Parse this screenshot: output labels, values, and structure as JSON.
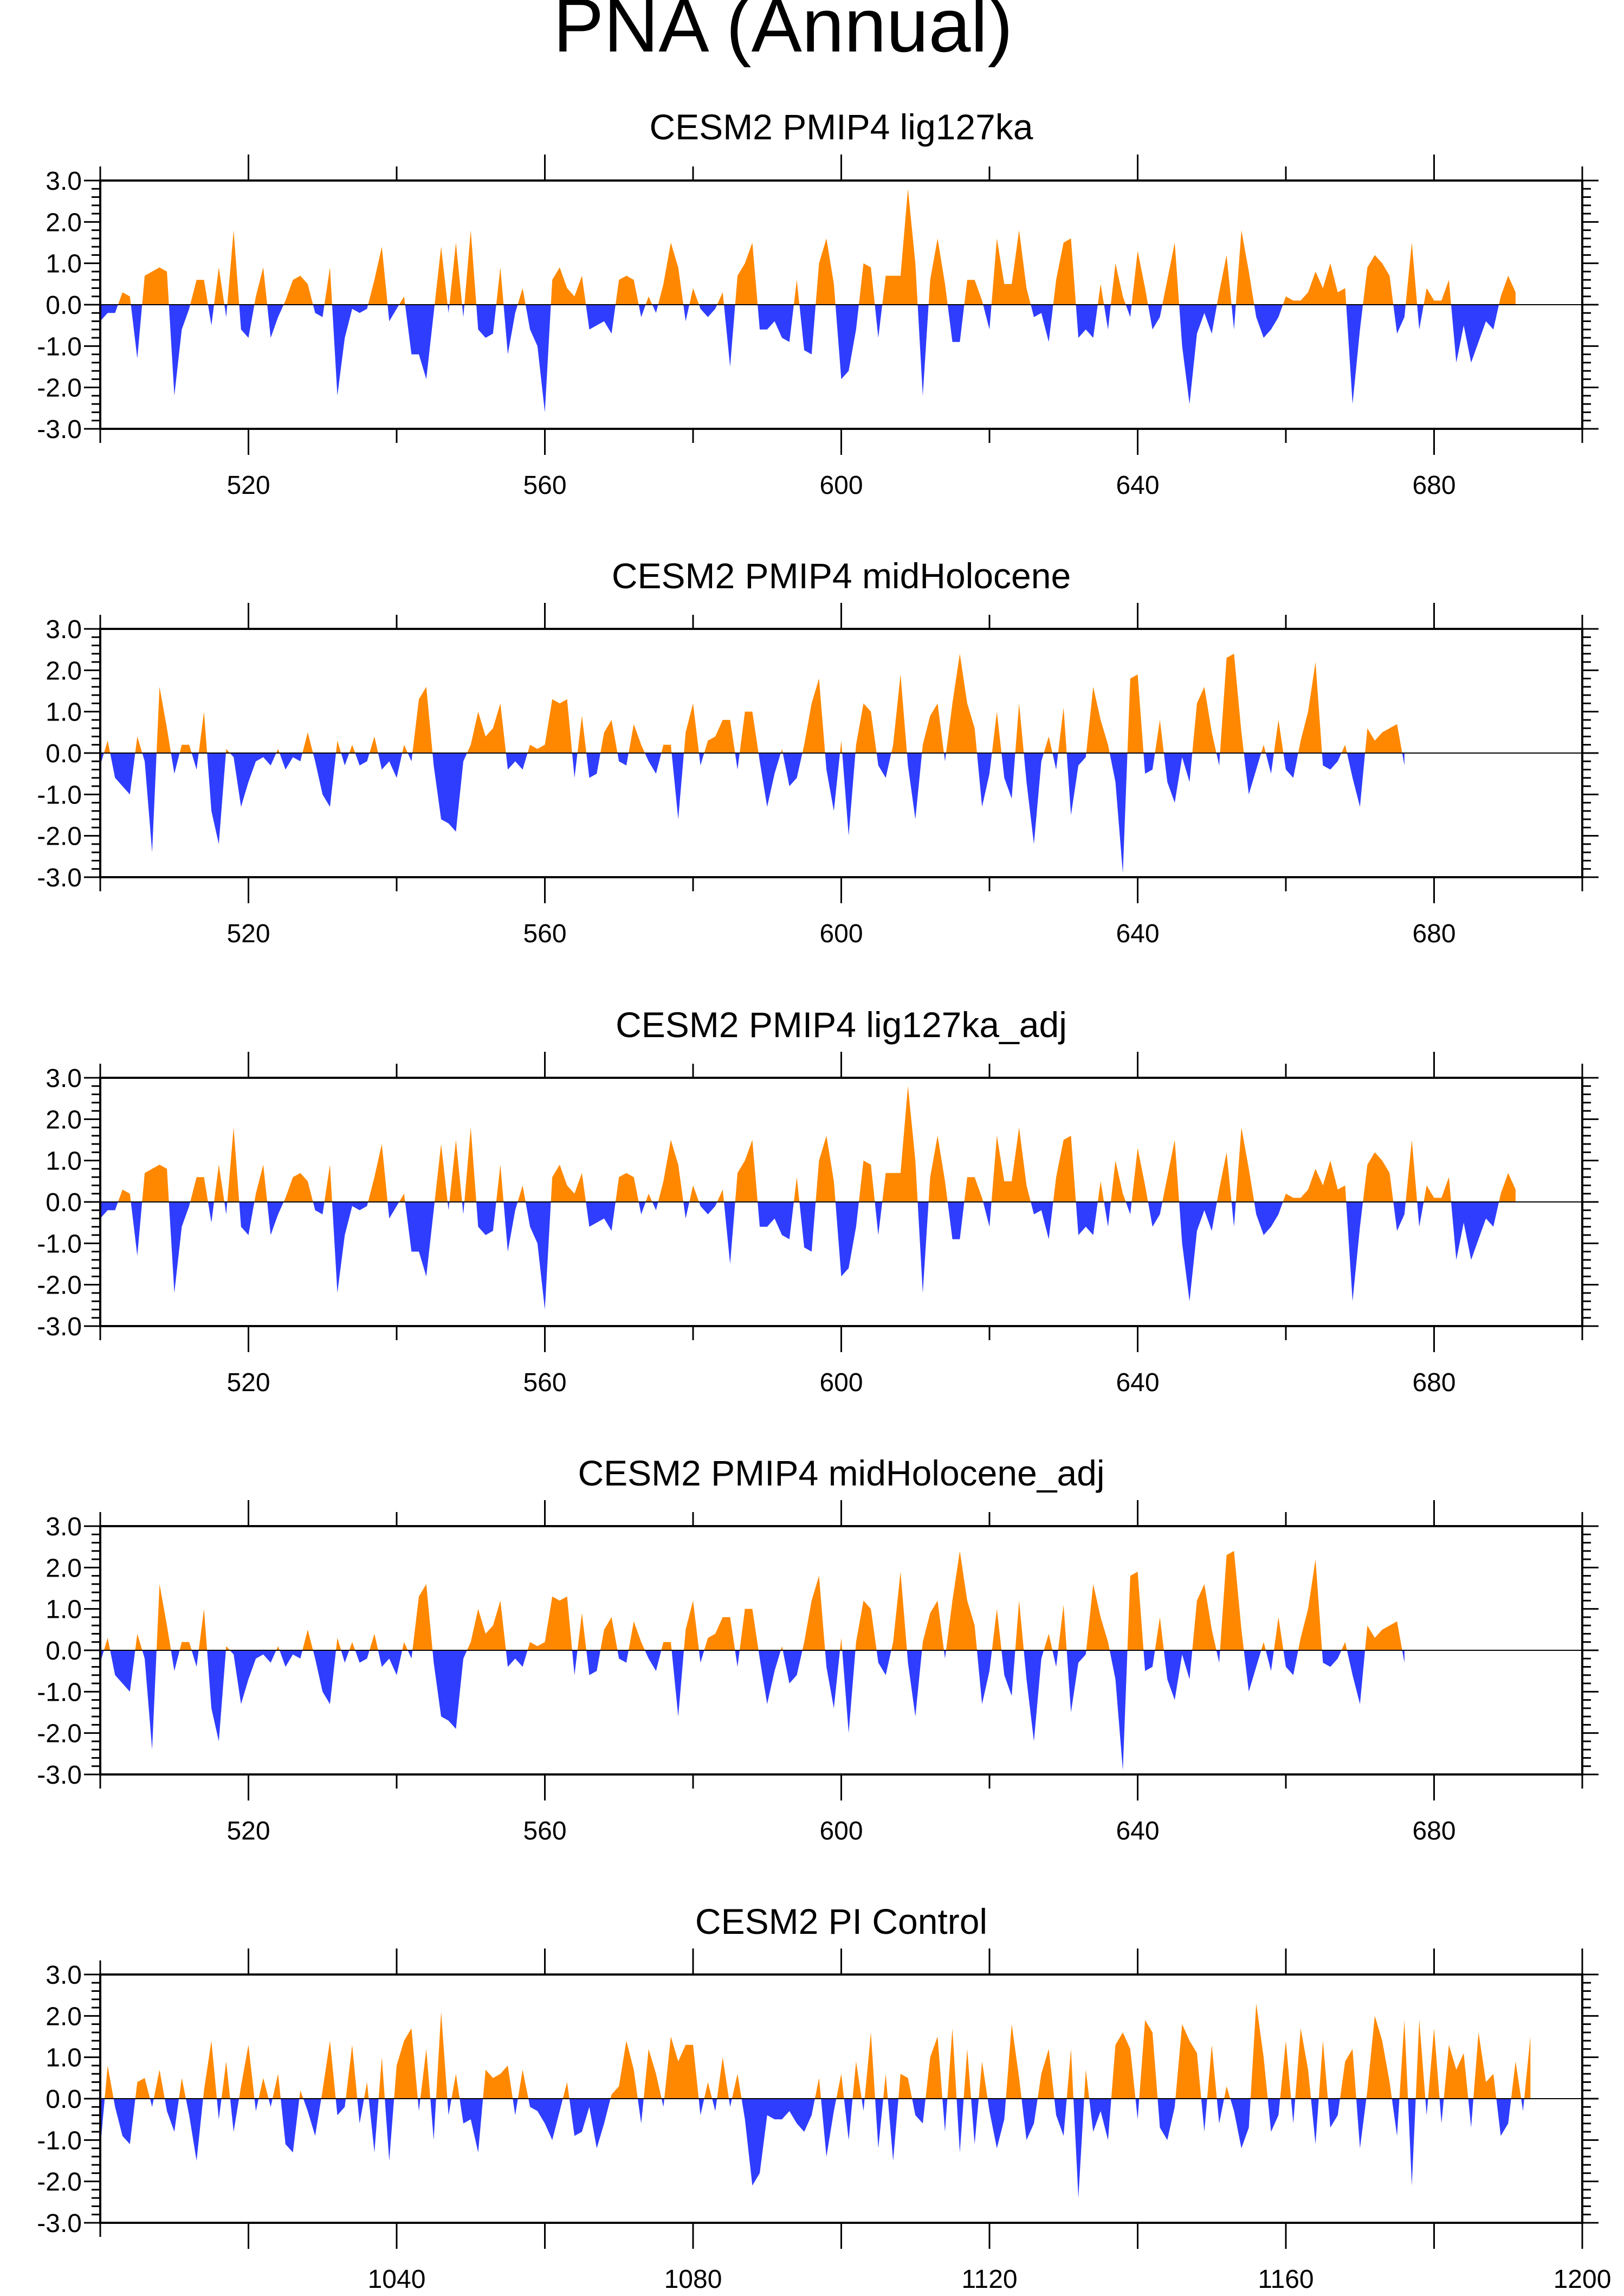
{
  "figure_title": "PNA (Annual)",
  "colors": {
    "positive": "#ff8800",
    "negative": "#2f3dff",
    "axis": "#000000",
    "zero_line": "#000000"
  },
  "chart_data": [
    {
      "type": "area",
      "title": "CESM2 PMIP4 lig127ka",
      "ylim": [
        -3.0,
        3.0
      ],
      "yticks": [
        "3.0",
        "2.0",
        "1.0",
        "0.0",
        "-1.0",
        "-2.0",
        "-3.0"
      ],
      "xlim": [
        500,
        700
      ],
      "xticks": [
        "520",
        "560",
        "600",
        "640",
        "680"
      ],
      "x_start": 500,
      "values": [
        -0.4,
        -0.2,
        -0.2,
        0.3,
        0.2,
        -1.3,
        0.7,
        0.8,
        0.9,
        0.8,
        -2.2,
        -0.6,
        -0.1,
        0.6,
        0.6,
        -0.5,
        0.9,
        -0.3,
        1.8,
        -0.6,
        -0.8,
        0.2,
        0.9,
        -0.8,
        -0.3,
        0.1,
        0.6,
        0.7,
        0.5,
        -0.2,
        -0.3,
        0.9,
        -2.2,
        -0.8,
        -0.1,
        -0.2,
        -0.1,
        0.6,
        1.4,
        -0.4,
        -0.1,
        0.2,
        -1.2,
        -1.2,
        -1.8,
        -0.2,
        1.4,
        -0.2,
        1.5,
        -0.3,
        1.8,
        -0.6,
        -0.8,
        -0.7,
        0.9,
        -1.2,
        -0.2,
        0.4,
        -0.6,
        -1.0,
        -2.6,
        0.6,
        0.9,
        0.4,
        0.2,
        0.7,
        -0.6,
        -0.5,
        -0.4,
        -0.7,
        0.6,
        0.7,
        0.6,
        -0.3,
        0.2,
        -0.2,
        0.5,
        1.5,
        0.9,
        -0.4,
        0.4,
        -0.1,
        -0.3,
        -0.1,
        0.3,
        -1.5,
        0.7,
        1.0,
        1.5,
        -0.6,
        -0.6,
        -0.4,
        -0.8,
        -0.9,
        0.6,
        -1.1,
        -1.2,
        1.0,
        1.6,
        0.5,
        -1.8,
        -1.6,
        -0.6,
        1.0,
        0.9,
        -0.8,
        0.7,
        0.7,
        0.7,
        2.8,
        1.0,
        -2.2,
        0.6,
        1.6,
        0.5,
        -0.9,
        -0.9,
        0.6,
        0.6,
        0.1,
        -0.6,
        1.6,
        0.5,
        0.5,
        1.8,
        0.4,
        -0.3,
        -0.2,
        -0.9,
        0.6,
        1.5,
        1.6,
        -0.8,
        -0.6,
        -0.8,
        0.5,
        -0.6,
        1.0,
        0.2,
        -0.3,
        1.3,
        0.4,
        -0.6,
        -0.3,
        0.6,
        1.5,
        -1.0,
        -2.4,
        -0.7,
        -0.2,
        -0.7,
        0.3,
        1.2,
        -0.6,
        1.8,
        0.8,
        -0.3,
        -0.8,
        -0.6,
        -0.3,
        0.2,
        0.1,
        0.1,
        0.3,
        0.8,
        0.4,
        1.0,
        0.3,
        0.4,
        -2.4,
        -0.6,
        0.9,
        1.2,
        1.0,
        0.7,
        -0.7,
        -0.3,
        1.5,
        -0.6,
        0.4,
        0.1,
        0.1,
        0.6,
        -1.4,
        -0.5,
        -1.4,
        -0.9,
        -0.4,
        -0.6,
        0.2,
        0.7,
        0.3
      ]
    },
    {
      "type": "area",
      "title": "CESM2 PMIP4 midHolocene",
      "ylim": [
        -3.0,
        3.0
      ],
      "yticks": [
        "3.0",
        "2.0",
        "1.0",
        "0.0",
        "-1.0",
        "-2.0",
        "-3.0"
      ],
      "xlim": [
        500,
        700
      ],
      "xticks": [
        "520",
        "560",
        "600",
        "640",
        "680"
      ],
      "x_start": 500,
      "values": [
        -0.3,
        0.3,
        -0.6,
        -0.8,
        -1.0,
        0.4,
        -0.2,
        -2.4,
        1.6,
        0.6,
        -0.5,
        0.2,
        0.2,
        -0.4,
        1.0,
        -1.4,
        -2.2,
        0.1,
        -0.1,
        -1.3,
        -0.7,
        -0.2,
        -0.1,
        -0.3,
        0.1,
        -0.4,
        -0.1,
        -0.2,
        0.5,
        -0.2,
        -1.0,
        -1.3,
        0.3,
        -0.3,
        0.2,
        -0.3,
        -0.2,
        0.4,
        -0.4,
        -0.2,
        -0.6,
        0.2,
        -0.2,
        1.3,
        1.6,
        -0.3,
        -1.6,
        -1.7,
        -1.9,
        -0.2,
        0.2,
        1.0,
        0.4,
        0.6,
        1.2,
        -0.4,
        -0.2,
        -0.4,
        0.2,
        0.1,
        0.2,
        1.3,
        1.2,
        1.3,
        -0.6,
        0.9,
        -0.6,
        -0.5,
        0.5,
        0.8,
        -0.2,
        -0.3,
        0.7,
        0.2,
        -0.2,
        -0.5,
        0.2,
        0.2,
        -1.6,
        0.5,
        1.2,
        -0.3,
        0.3,
        0.4,
        0.8,
        0.8,
        -0.4,
        1.0,
        1.0,
        -0.2,
        -1.3,
        -0.5,
        0.1,
        -0.8,
        -0.6,
        0.2,
        1.2,
        1.8,
        -0.4,
        -1.4,
        0.3,
        -2.0,
        0.2,
        1.2,
        1.0,
        -0.3,
        -0.6,
        0.2,
        1.9,
        -0.3,
        -1.6,
        0.2,
        0.9,
        1.2,
        -0.2,
        1.2,
        2.4,
        1.2,
        0.6,
        -1.3,
        -0.5,
        1.0,
        -0.6,
        -1.1,
        1.2,
        -0.7,
        -2.2,
        -0.2,
        0.4,
        -0.4,
        1.1,
        -1.5,
        -0.3,
        -0.1,
        1.6,
        0.8,
        0.2,
        -0.7,
        -2.9,
        1.8,
        1.9,
        -0.5,
        -0.4,
        0.8,
        -0.7,
        -1.2,
        -0.1,
        -0.7,
        1.2,
        1.6,
        0.5,
        -0.3,
        2.3,
        2.4,
        0.5,
        -1.0,
        -0.4,
        0.2,
        -0.5,
        0.8,
        -0.4,
        -0.6,
        0.3,
        1.0,
        2.2,
        -0.3,
        -0.4,
        -0.2,
        0.2,
        -0.6,
        -1.3,
        0.6,
        0.3,
        0.5,
        0.6,
        0.7,
        -0.3
      ],
      "values_note": ""
    },
    {
      "type": "area",
      "title": "CESM2 PMIP4 lig127ka_adj",
      "ylim": [
        -3.0,
        3.0
      ],
      "yticks": [
        "3.0",
        "2.0",
        "1.0",
        "0.0",
        "-1.0",
        "-2.0",
        "-3.0"
      ],
      "xlim": [
        500,
        700
      ],
      "xticks": [
        "520",
        "560",
        "600",
        "640",
        "680"
      ],
      "x_start": 500,
      "values": [
        -0.4,
        -0.2,
        -0.2,
        0.3,
        0.2,
        -1.3,
        0.7,
        0.8,
        0.9,
        0.8,
        -2.2,
        -0.6,
        -0.1,
        0.6,
        0.6,
        -0.5,
        0.9,
        -0.3,
        1.8,
        -0.6,
        -0.8,
        0.2,
        0.9,
        -0.8,
        -0.3,
        0.1,
        0.6,
        0.7,
        0.5,
        -0.2,
        -0.3,
        0.9,
        -2.2,
        -0.8,
        -0.1,
        -0.2,
        -0.1,
        0.6,
        1.4,
        -0.4,
        -0.1,
        0.2,
        -1.2,
        -1.2,
        -1.8,
        -0.2,
        1.4,
        -0.2,
        1.5,
        -0.3,
        1.8,
        -0.6,
        -0.8,
        -0.7,
        0.9,
        -1.2,
        -0.2,
        0.4,
        -0.6,
        -1.0,
        -2.6,
        0.6,
        0.9,
        0.4,
        0.2,
        0.7,
        -0.6,
        -0.5,
        -0.4,
        -0.7,
        0.6,
        0.7,
        0.6,
        -0.3,
        0.2,
        -0.2,
        0.5,
        1.5,
        0.9,
        -0.4,
        0.4,
        -0.1,
        -0.3,
        -0.1,
        0.3,
        -1.5,
        0.7,
        1.0,
        1.5,
        -0.6,
        -0.6,
        -0.4,
        -0.8,
        -0.9,
        0.6,
        -1.1,
        -1.2,
        1.0,
        1.6,
        0.5,
        -1.8,
        -1.6,
        -0.6,
        1.0,
        0.9,
        -0.8,
        0.7,
        0.7,
        0.7,
        2.8,
        1.0,
        -2.2,
        0.6,
        1.6,
        0.5,
        -0.9,
        -0.9,
        0.6,
        0.6,
        0.1,
        -0.6,
        1.6,
        0.5,
        0.5,
        1.8,
        0.4,
        -0.3,
        -0.2,
        -0.9,
        0.6,
        1.5,
        1.6,
        -0.8,
        -0.6,
        -0.8,
        0.5,
        -0.6,
        1.0,
        0.2,
        -0.3,
        1.3,
        0.4,
        -0.6,
        -0.3,
        0.6,
        1.5,
        -1.0,
        -2.4,
        -0.7,
        -0.2,
        -0.7,
        0.3,
        1.2,
        -0.6,
        1.8,
        0.8,
        -0.3,
        -0.8,
        -0.6,
        -0.3,
        0.2,
        0.1,
        0.1,
        0.3,
        0.8,
        0.4,
        1.0,
        0.3,
        0.4,
        -2.4,
        -0.6,
        0.9,
        1.2,
        1.0,
        0.7,
        -0.7,
        -0.3,
        1.5,
        -0.6,
        0.4,
        0.1,
        0.1,
        0.6,
        -1.4,
        -0.5,
        -1.4,
        -0.9,
        -0.4,
        -0.6,
        0.2,
        0.7,
        0.3
      ]
    },
    {
      "type": "area",
      "title": "CESM2 PMIP4 midHolocene_adj",
      "ylim": [
        -3.0,
        3.0
      ],
      "yticks": [
        "3.0",
        "2.0",
        "1.0",
        "0.0",
        "-1.0",
        "-2.0",
        "-3.0"
      ],
      "xlim": [
        500,
        700
      ],
      "xticks": [
        "520",
        "560",
        "600",
        "640",
        "680"
      ],
      "x_start": 500,
      "values": [
        -0.3,
        0.3,
        -0.6,
        -0.8,
        -1.0,
        0.4,
        -0.2,
        -2.4,
        1.6,
        0.6,
        -0.5,
        0.2,
        0.2,
        -0.4,
        1.0,
        -1.4,
        -2.2,
        0.1,
        -0.1,
        -1.3,
        -0.7,
        -0.2,
        -0.1,
        -0.3,
        0.1,
        -0.4,
        -0.1,
        -0.2,
        0.5,
        -0.2,
        -1.0,
        -1.3,
        0.3,
        -0.3,
        0.2,
        -0.3,
        -0.2,
        0.4,
        -0.4,
        -0.2,
        -0.6,
        0.2,
        -0.2,
        1.3,
        1.6,
        -0.3,
        -1.6,
        -1.7,
        -1.9,
        -0.2,
        0.2,
        1.0,
        0.4,
        0.6,
        1.2,
        -0.4,
        -0.2,
        -0.4,
        0.2,
        0.1,
        0.2,
        1.3,
        1.2,
        1.3,
        -0.6,
        0.9,
        -0.6,
        -0.5,
        0.5,
        0.8,
        -0.2,
        -0.3,
        0.7,
        0.2,
        -0.2,
        -0.5,
        0.2,
        0.2,
        -1.6,
        0.5,
        1.2,
        -0.3,
        0.3,
        0.4,
        0.8,
        0.8,
        -0.4,
        1.0,
        1.0,
        -0.2,
        -1.3,
        -0.5,
        0.1,
        -0.8,
        -0.6,
        0.2,
        1.2,
        1.8,
        -0.4,
        -1.4,
        0.3,
        -2.0,
        0.2,
        1.2,
        1.0,
        -0.3,
        -0.6,
        0.2,
        1.9,
        -0.3,
        -1.6,
        0.2,
        0.9,
        1.2,
        -0.2,
        1.2,
        2.4,
        1.2,
        0.6,
        -1.3,
        -0.5,
        1.0,
        -0.6,
        -1.1,
        1.2,
        -0.7,
        -2.2,
        -0.2,
        0.4,
        -0.4,
        1.1,
        -1.5,
        -0.3,
        -0.1,
        1.6,
        0.8,
        0.2,
        -0.7,
        -2.9,
        1.8,
        1.9,
        -0.5,
        -0.4,
        0.8,
        -0.7,
        -1.2,
        -0.1,
        -0.7,
        1.2,
        1.6,
        0.5,
        -0.3,
        2.3,
        2.4,
        0.5,
        -1.0,
        -0.4,
        0.2,
        -0.5,
        0.8,
        -0.4,
        -0.6,
        0.3,
        1.0,
        2.2,
        -0.3,
        -0.4,
        -0.2,
        0.2,
        -0.6,
        -1.3,
        0.6,
        0.3,
        0.5,
        0.6,
        0.7,
        -0.3
      ]
    },
    {
      "type": "area",
      "title": "CESM2 PI Control",
      "ylim": [
        -3.0,
        3.0
      ],
      "yticks": [
        "3.0",
        "2.0",
        "1.0",
        "0.0",
        "-1.0",
        "-2.0",
        "-3.0"
      ],
      "xlim": [
        1000,
        1200
      ],
      "xticks": [
        "1040",
        "1080",
        "1120",
        "1160",
        "1200"
      ],
      "x_start": 1000,
      "values": [
        -1.2,
        0.8,
        -0.2,
        -0.9,
        -1.1,
        0.4,
        0.5,
        -0.2,
        0.7,
        -0.3,
        -0.8,
        0.5,
        -0.4,
        -1.5,
        0.2,
        1.4,
        -0.5,
        0.9,
        -0.8,
        0.3,
        1.3,
        -0.3,
        0.5,
        -0.2,
        0.6,
        -1.1,
        -1.3,
        0.2,
        -0.3,
        -0.9,
        0.2,
        1.4,
        -0.4,
        -0.2,
        1.3,
        -0.6,
        0.4,
        -1.3,
        1.0,
        -1.5,
        0.8,
        1.4,
        1.7,
        -0.3,
        1.2,
        -1.0,
        2.1,
        -0.4,
        0.6,
        -0.6,
        -0.5,
        -1.3,
        0.7,
        0.5,
        0.6,
        0.8,
        -0.4,
        0.7,
        -0.2,
        -0.3,
        -0.6,
        -1.0,
        -0.3,
        0.4,
        -0.9,
        -0.8,
        -0.2,
        -1.2,
        -0.6,
        0.1,
        0.3,
        1.4,
        0.7,
        -0.6,
        1.2,
        0.6,
        -0.2,
        1.5,
        0.9,
        1.3,
        1.3,
        -0.4,
        0.4,
        -0.3,
        1.0,
        -0.2,
        0.6,
        -0.5,
        -2.1,
        -1.8,
        -0.4,
        -0.5,
        -0.5,
        -0.3,
        -0.6,
        -0.8,
        -0.4,
        0.5,
        -1.4,
        -0.3,
        0.6,
        -1.0,
        0.9,
        -0.3,
        1.6,
        -1.2,
        0.6,
        -1.5,
        0.6,
        0.5,
        -0.4,
        -0.6,
        1.0,
        1.5,
        -0.8,
        1.7,
        -1.3,
        1.2,
        -1.1,
        0.9,
        -0.3,
        -1.2,
        -0.5,
        1.8,
        0.5,
        -1.0,
        -0.6,
        0.6,
        1.2,
        -0.4,
        -0.9,
        1.2,
        -2.4,
        0.7,
        -0.8,
        -0.3,
        -1.0,
        1.3,
        1.6,
        1.2,
        -0.5,
        1.9,
        1.6,
        -0.7,
        -1.0,
        -0.2,
        1.8,
        1.4,
        1.1,
        -0.8,
        1.3,
        -0.6,
        0.3,
        -0.3,
        -1.2,
        -0.7,
        2.3,
        1.0,
        -0.8,
        -0.4,
        1.4,
        -0.6,
        1.7,
        0.7,
        -1.1,
        1.4,
        -0.7,
        -0.4,
        0.9,
        1.2,
        -1.2,
        0.2,
        2.0,
        1.4,
        0.4,
        -0.9,
        1.9,
        -2.1,
        1.9,
        -0.4,
        1.7,
        -0.6,
        1.3,
        0.7,
        1.1,
        -0.7,
        1.6,
        0.4,
        0.6,
        -0.9,
        -0.6,
        0.9,
        -0.3,
        1.5
      ]
    }
  ]
}
